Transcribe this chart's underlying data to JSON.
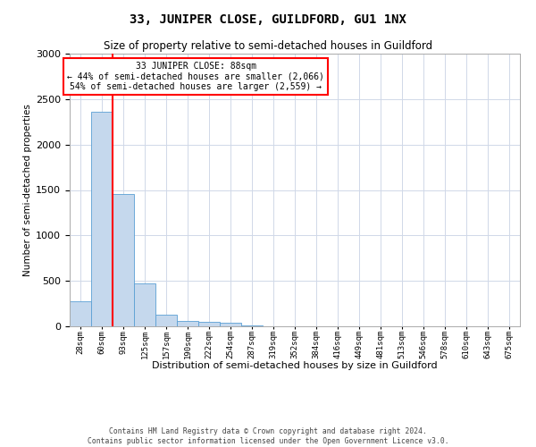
{
  "title": "33, JUNIPER CLOSE, GUILDFORD, GU1 1NX",
  "subtitle": "Size of property relative to semi-detached houses in Guildford",
  "xlabel": "Distribution of semi-detached houses by size in Guildford",
  "ylabel": "Number of semi-detached properties",
  "bar_color": "#c5d8ed",
  "bar_edge_color": "#5a9fd4",
  "bin_labels": [
    "28sqm",
    "60sqm",
    "93sqm",
    "125sqm",
    "157sqm",
    "190sqm",
    "222sqm",
    "254sqm",
    "287sqm",
    "319sqm",
    "352sqm",
    "384sqm",
    "416sqm",
    "449sqm",
    "481sqm",
    "513sqm",
    "546sqm",
    "578sqm",
    "610sqm",
    "643sqm",
    "675sqm"
  ],
  "bar_heights": [
    280,
    2360,
    1460,
    470,
    130,
    60,
    45,
    40,
    5,
    3,
    2,
    1,
    1,
    1,
    1,
    0,
    0,
    0,
    0,
    0,
    0
  ],
  "ylim": [
    0,
    3000
  ],
  "yticks": [
    0,
    500,
    1000,
    1500,
    2000,
    2500,
    3000
  ],
  "red_line_x": 1.5,
  "annotation_text": "33 JUNIPER CLOSE: 88sqm\n← 44% of semi-detached houses are smaller (2,066)\n54% of semi-detached houses are larger (2,559) →",
  "footnote": "Contains HM Land Registry data © Crown copyright and database right 2024.\nContains public sector information licensed under the Open Government Licence v3.0.",
  "background_color": "#ffffff",
  "grid_color": "#d0d8e8"
}
